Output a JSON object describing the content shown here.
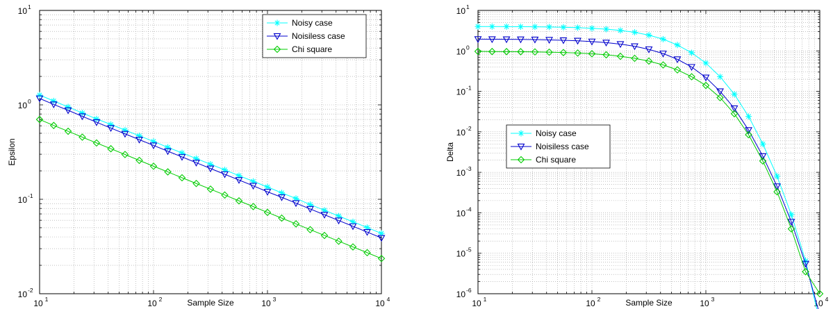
{
  "chart_data": [
    {
      "type": "line",
      "x_scale": "log",
      "y_scale": "log",
      "grid": true,
      "xlabel": "Sample Size",
      "ylabel": "Epsilon",
      "xlim": [
        10,
        10000
      ],
      "ylim": [
        0.01,
        10
      ],
      "x_ticks": [
        "10",
        "10",
        "10",
        "10"
      ],
      "x_tick_exps": [
        "1",
        "2",
        "3",
        "4"
      ],
      "y_ticks": [
        "10",
        "10",
        "10",
        "10"
      ],
      "y_tick_exps": [
        "-2",
        "-1",
        "0",
        "1"
      ],
      "legend_position": "top-right",
      "x": [
        10,
        13.3,
        17.8,
        23.7,
        31.6,
        42.2,
        56.2,
        75,
        100,
        133.4,
        177.8,
        237.1,
        316.2,
        421.7,
        562.3,
        749.9,
        1000,
        1333.5,
        1778.3,
        2371.4,
        3162.3,
        4217,
        5623.4,
        7498.9,
        10000
      ],
      "series": [
        {
          "name": "Noisy case",
          "color": "#00ffff",
          "marker": "asterisk",
          "values": [
            1.27,
            1.1,
            0.95,
            0.82,
            0.71,
            0.62,
            0.54,
            0.47,
            0.41,
            0.355,
            0.31,
            0.27,
            0.235,
            0.205,
            0.178,
            0.155,
            0.135,
            0.117,
            0.102,
            0.088,
            0.0765,
            0.0665,
            0.0578,
            0.0502,
            0.0436
          ]
        },
        {
          "name": "Noisiless case",
          "color": "#0000cc",
          "marker": "triangle-down",
          "values": [
            1.17,
            1.01,
            0.875,
            0.756,
            0.654,
            0.568,
            0.493,
            0.428,
            0.372,
            0.323,
            0.281,
            0.244,
            0.212,
            0.184,
            0.16,
            0.139,
            0.12,
            0.105,
            0.091,
            0.079,
            0.0686,
            0.0596,
            0.0518,
            0.045,
            0.039
          ]
        },
        {
          "name": "Chi square",
          "color": "#00cc00",
          "marker": "diamond",
          "values": [
            0.7,
            0.605,
            0.525,
            0.455,
            0.395,
            0.343,
            0.298,
            0.258,
            0.224,
            0.195,
            0.169,
            0.147,
            0.128,
            0.111,
            0.0963,
            0.0837,
            0.0727,
            0.0632,
            0.0549,
            0.0477,
            0.0414,
            0.036,
            0.0313,
            0.0272,
            0.0236
          ]
        }
      ]
    },
    {
      "type": "line",
      "x_scale": "log",
      "y_scale": "log",
      "grid": true,
      "xlabel": "Sample Size",
      "ylabel": "Delta",
      "xlim": [
        10,
        10000
      ],
      "ylim": [
        1e-06,
        10
      ],
      "x_ticks": [
        "10",
        "10",
        "10",
        "10"
      ],
      "x_tick_exps": [
        "1",
        "2",
        "3",
        "4"
      ],
      "y_ticks": [
        "10",
        "10",
        "10",
        "10",
        "10",
        "10",
        "10",
        "10"
      ],
      "y_tick_exps": [
        "-6",
        "-5",
        "-4",
        "-3",
        "-2",
        "-1",
        "0",
        "1"
      ],
      "legend_position": "center-left",
      "x": [
        10,
        13.3,
        17.8,
        23.7,
        31.6,
        42.2,
        56.2,
        75,
        100,
        133.4,
        177.8,
        237.1,
        316.2,
        421.7,
        562.3,
        749.9,
        1000,
        1333.5,
        1778.3,
        2371.4,
        3162.3,
        4217,
        5623.4,
        7498.9,
        10000
      ],
      "series": [
        {
          "name": "Noisy case",
          "color": "#00ffff",
          "marker": "asterisk",
          "values": [
            4.0,
            3.99,
            3.98,
            3.96,
            3.94,
            3.9,
            3.84,
            3.75,
            3.62,
            3.45,
            3.2,
            2.88,
            2.45,
            1.95,
            1.4,
            0.9,
            0.5,
            0.23,
            0.085,
            0.024,
            0.005,
            0.0008,
            9e-05,
            6.5e-06,
            2e-07
          ]
        },
        {
          "name": "Noisiless case",
          "color": "#0000cc",
          "marker": "triangle-down",
          "values": [
            1.95,
            1.94,
            1.93,
            1.92,
            1.9,
            1.87,
            1.83,
            1.78,
            1.7,
            1.6,
            1.47,
            1.3,
            1.09,
            0.86,
            0.62,
            0.4,
            0.22,
            0.1,
            0.038,
            0.011,
            0.0025,
            0.00045,
            6e-05,
            5.5e-06,
            3e-07
          ]
        },
        {
          "name": "Chi square",
          "color": "#00cc00",
          "marker": "diamond",
          "values": [
            0.97,
            0.965,
            0.96,
            0.955,
            0.945,
            0.93,
            0.91,
            0.885,
            0.85,
            0.8,
            0.735,
            0.655,
            0.56,
            0.45,
            0.34,
            0.23,
            0.14,
            0.07,
            0.028,
            0.0085,
            0.0019,
            0.00033,
            4e-05,
            3.5e-06,
            1e-06
          ]
        }
      ]
    }
  ]
}
